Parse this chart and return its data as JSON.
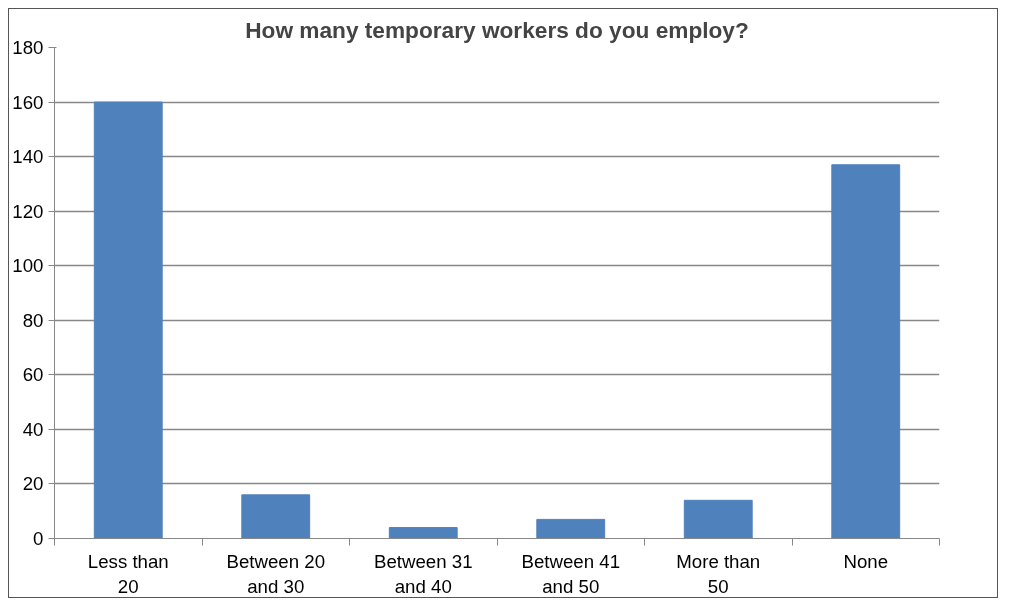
{
  "chart_data": {
    "type": "bar",
    "title": "How many temporary workers do you employ?",
    "categories": [
      "Less than 20",
      "Between 20 and 30",
      "Between 31 and 40",
      "Between 41 and 50",
      "More than 50",
      "None"
    ],
    "values": [
      160,
      16,
      4,
      7,
      14,
      137
    ],
    "color": "#4f81bd",
    "ylim": [
      0,
      180
    ],
    "yticks": [
      0,
      20,
      40,
      60,
      80,
      100,
      120,
      140,
      160,
      180
    ],
    "grid": "y"
  }
}
